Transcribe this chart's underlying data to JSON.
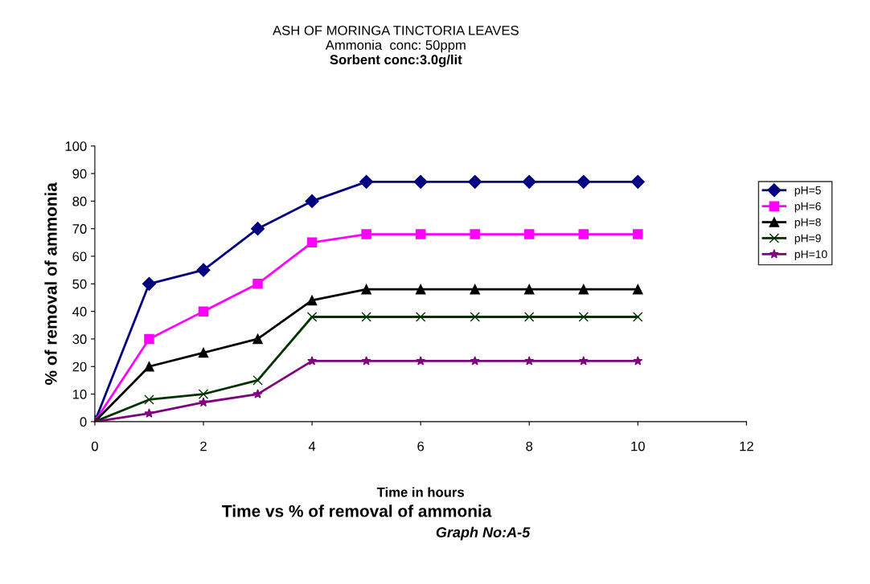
{
  "chart_data": {
    "type": "line",
    "title": "ASH OF MORINGA TINCTORIA LEAVES",
    "subtitle": "Ammonia  conc: 50ppm\nSorbent conc:3.0g/lit",
    "xlabel": "Time in hours",
    "ylabel": "% of removal of ammonia",
    "annotations": [
      "Time vs % of removal of ammonia",
      "Graph No:A-5"
    ],
    "x": [
      0,
      1,
      2,
      3,
      4,
      5,
      6,
      7,
      8,
      9,
      10
    ],
    "series": [
      {
        "name": "pH=5",
        "color": "#000080",
        "marker": "diamond",
        "values": [
          0,
          50,
          55,
          70,
          80,
          87,
          87,
          87,
          87,
          87,
          87
        ]
      },
      {
        "name": "pH=6",
        "color": "#ff00ff",
        "marker": "square",
        "values": [
          0,
          30,
          40,
          50,
          65,
          68,
          68,
          68,
          68,
          68,
          68
        ]
      },
      {
        "name": "pH=8",
        "color": "#000000",
        "marker": "triangle",
        "values": [
          0,
          20,
          25,
          30,
          44,
          48,
          48,
          48,
          48,
          48,
          48
        ]
      },
      {
        "name": "pH=9",
        "color": "#003300",
        "marker": "cross",
        "values": [
          0,
          8,
          10,
          15,
          38,
          38,
          38,
          38,
          38,
          38,
          38
        ]
      },
      {
        "name": "pH=10",
        "color": "#800080",
        "marker": "star",
        "values": [
          0,
          3,
          7,
          10,
          22,
          22,
          22,
          22,
          22,
          22,
          22
        ]
      }
    ],
    "xlim": [
      0,
      12
    ],
    "xticks": [
      0,
      2,
      4,
      6,
      8,
      10,
      12
    ],
    "ylim": [
      0,
      100
    ],
    "yticks": [
      0,
      10,
      20,
      30,
      40,
      50,
      60,
      70,
      80,
      90,
      100
    ],
    "grid": false,
    "legend": "right",
    "line_style": "solid"
  }
}
